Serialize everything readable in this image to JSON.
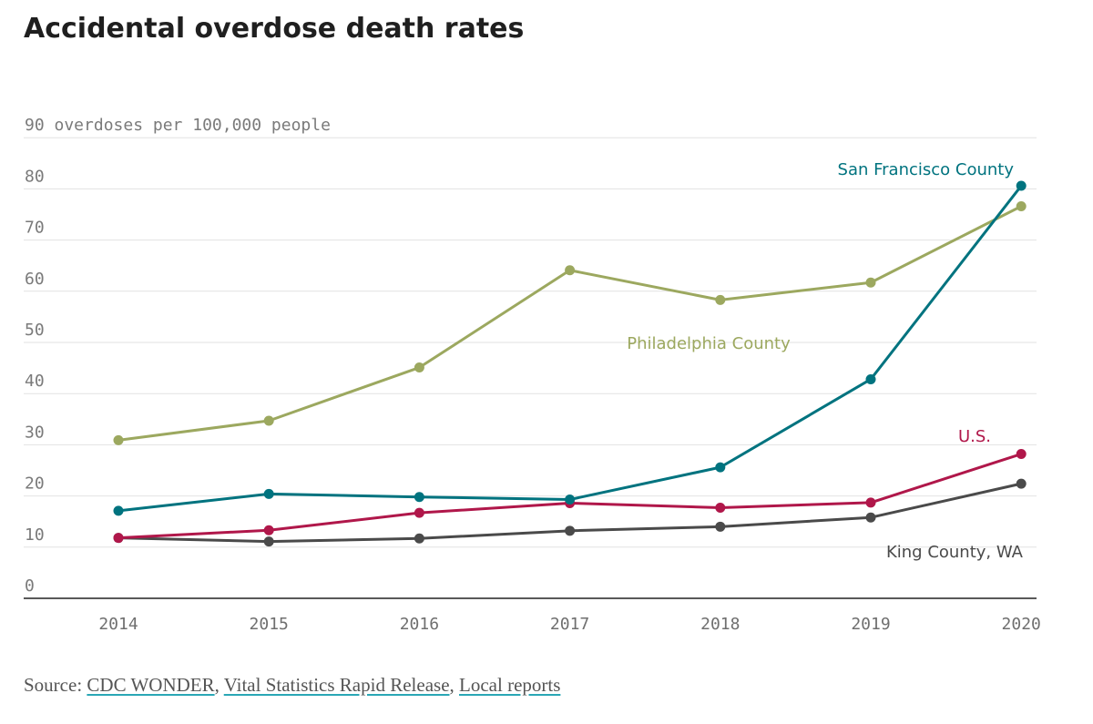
{
  "title": "Accidental overdose death rates",
  "chart_data": {
    "type": "line",
    "title": "Accidental overdose death rates",
    "ylabel": "overdoses per 100,000 people",
    "top_tick_label": "90 overdoses per 100,000 people",
    "xlabel": "",
    "ylim": [
      0,
      90
    ],
    "yticks": [
      0,
      10,
      20,
      30,
      40,
      50,
      60,
      70,
      80,
      90
    ],
    "x": [
      "2014",
      "2015",
      "2016",
      "2017",
      "2018",
      "2019",
      "2020"
    ],
    "series": [
      {
        "name": "Philadelphia County",
        "color": "#9ca85f",
        "values": [
          30.9,
          34.7,
          45.1,
          64.1,
          58.3,
          61.7,
          76.6
        ]
      },
      {
        "name": "San Francisco County",
        "color": "#00737f",
        "values": [
          17.1,
          20.4,
          19.8,
          19.3,
          25.6,
          42.8,
          80.6
        ]
      },
      {
        "name": "U.S.",
        "color": "#b0174a",
        "values": [
          11.8,
          13.3,
          16.7,
          18.6,
          17.7,
          18.7,
          28.2
        ]
      },
      {
        "name": "King County, WA",
        "color": "#4a4a4a",
        "values": [
          11.8,
          11.1,
          11.7,
          13.2,
          14.0,
          15.8,
          22.4
        ]
      }
    ],
    "grid": true,
    "legend": "inline labels"
  },
  "source": {
    "prefix": "Source: ",
    "links": [
      "CDC WONDER",
      "Vital Statistics Rapid Release",
      "Local reports"
    ]
  }
}
